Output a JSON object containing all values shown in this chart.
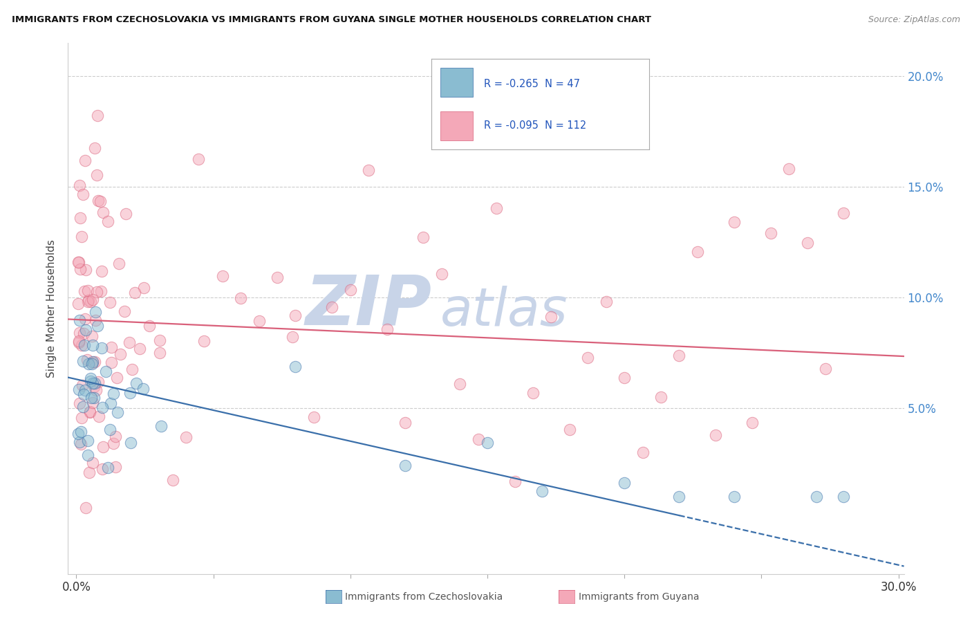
{
  "title": "IMMIGRANTS FROM CZECHOSLOVAKIA VS IMMIGRANTS FROM GUYANA SINGLE MOTHER HOUSEHOLDS CORRELATION CHART",
  "source": "Source: ZipAtlas.com",
  "ylabel": "Single Mother Households",
  "legend_labels": [
    "Immigrants from Czechoslovakia",
    "Immigrants from Guyana"
  ],
  "legend_r": [
    -0.265,
    -0.095
  ],
  "legend_n": [
    47,
    112
  ],
  "xlim": [
    -0.003,
    0.302
  ],
  "ylim": [
    -0.025,
    0.215
  ],
  "yticks": [
    0.05,
    0.1,
    0.15,
    0.2
  ],
  "ytick_labels": [
    "5.0%",
    "10.0%",
    "15.0%",
    "20.0%"
  ],
  "xticks": [
    0.0,
    0.05,
    0.1,
    0.15,
    0.2,
    0.25,
    0.3
  ],
  "xtick_labels": [
    "0.0%",
    "",
    "",
    "",
    "",
    "",
    "30.0%"
  ],
  "color_blue": "#8abcd1",
  "color_pink": "#f4a8b8",
  "color_blue_line": "#3a6faa",
  "color_pink_line": "#d9607a",
  "watermark_zip_color": "#c8d4e8",
  "watermark_atlas_color": "#c8d4e8",
  "background_color": "#ffffff",
  "czech_trend_intercept": 0.063,
  "czech_trend_slope": -0.28,
  "guyana_trend_intercept": 0.09,
  "guyana_trend_slope": -0.055
}
